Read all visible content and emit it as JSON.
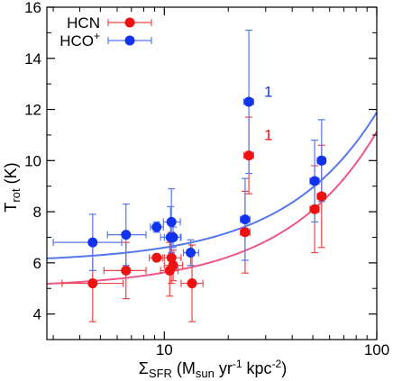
{
  "chart_data": {
    "type": "scatter",
    "title": "",
    "x_axis": {
      "scale": "log",
      "range": [
        2.8,
        100
      ],
      "tick_labels": [
        {
          "value": 10,
          "label": "10"
        },
        {
          "value": 100,
          "label": "100"
        }
      ],
      "minor_ticks": [
        3,
        4,
        5,
        6,
        7,
        8,
        9,
        20,
        30,
        40,
        50,
        60,
        70,
        80,
        90
      ],
      "label": {
        "main": "Σ",
        "main_sub": "SFR",
        "open": " (M",
        "unit_sub": "sun",
        "mid": " yr",
        "exp1": "-1",
        "mid2": " kpc",
        "exp2": "-2",
        "close": ")"
      }
    },
    "y_axis": {
      "scale": "linear",
      "range": [
        3,
        16
      ],
      "tick_labels": [
        {
          "value": 4,
          "label": "4"
        },
        {
          "value": 6,
          "label": "6"
        },
        {
          "value": 8,
          "label": "8"
        },
        {
          "value": 10,
          "label": "10"
        },
        {
          "value": 12,
          "label": "12"
        },
        {
          "value": 14,
          "label": "14"
        },
        {
          "value": 16,
          "label": "16"
        }
      ],
      "minor_ticks": [
        5,
        7,
        9,
        11,
        13,
        15
      ],
      "label": {
        "main": "T",
        "sub": "rot",
        "rest": " (K)"
      }
    },
    "grid": false,
    "legend": {
      "position": "top-left",
      "entries": [
        {
          "series": "HCN",
          "label_main": "HCN",
          "label_sup": ""
        },
        {
          "series": "HCO+",
          "label_main": "HCO",
          "label_sup": "+"
        }
      ]
    },
    "series": [
      {
        "name": "HCN",
        "color": "#ee1111",
        "errbar_color": "#ee4444",
        "points": [
          {
            "x": 4.6,
            "y": 5.2,
            "xerr": [
              3.3,
              6.4
            ],
            "yerr": [
              3.7,
              6.7
            ]
          },
          {
            "x": 6.6,
            "y": 5.7,
            "xerr": [
              5.2,
              8.2
            ],
            "yerr": [
              4.6,
              6.8
            ]
          },
          {
            "x": 9.2,
            "y": 6.2,
            "xerr": [
              8.5,
              10.0
            ],
            "yerr": [
              6.1,
              6.3
            ]
          },
          {
            "x": 10.6,
            "y": 5.7,
            "xerr": [
              9.6,
              11.6
            ],
            "yerr": [
              4.7,
              6.8
            ]
          },
          {
            "x": 10.8,
            "y": 6.2,
            "xerr": [
              9.8,
              12.0
            ],
            "yerr": [
              5.2,
              7.2
            ]
          },
          {
            "x": 11.0,
            "y": 5.9,
            "xerr": [
              10.0,
              12.2
            ],
            "yerr": [
              5.3,
              6.5
            ]
          },
          {
            "x": 13.5,
            "y": 5.2,
            "xerr": [
              12.0,
              15.2
            ],
            "yerr": [
              3.7,
              6.7
            ]
          },
          {
            "x": 24.0,
            "y": 7.2,
            "xerr": [
              22.8,
              25.3
            ],
            "yerr": [
              5.6,
              8.8
            ]
          },
          {
            "x": 25.0,
            "y": 10.2,
            "xerr": [
              23.7,
              26.3
            ],
            "yerr": [
              8.7,
              11.7
            ]
          },
          {
            "x": 51.0,
            "y": 8.1,
            "xerr": [
              48.5,
              53.5
            ],
            "yerr": [
              6.4,
              9.8
            ]
          },
          {
            "x": 55.0,
            "y": 8.6,
            "xerr": [
              52.5,
              57.5
            ],
            "yerr": [
              6.6,
              10.6
            ]
          }
        ],
        "fit": {
          "base": 5.01,
          "coef": 0.0612
        }
      },
      {
        "name": "HCO+",
        "color": "#1133ee",
        "errbar_color": "#5577ee",
        "points": [
          {
            "x": 4.6,
            "y": 6.8,
            "xerr": [
              3.0,
              6.3
            ],
            "yerr": [
              5.7,
              7.9
            ]
          },
          {
            "x": 6.6,
            "y": 7.1,
            "xerr": [
              5.4,
              8.2
            ],
            "yerr": [
              5.9,
              8.3
            ]
          },
          {
            "x": 9.2,
            "y": 7.4,
            "xerr": [
              8.6,
              9.9
            ],
            "yerr": [
              7.2,
              7.6
            ]
          },
          {
            "x": 10.7,
            "y": 7.0,
            "xerr": [
              9.6,
              11.9
            ],
            "yerr": [
              5.8,
              8.2
            ]
          },
          {
            "x": 10.8,
            "y": 7.6,
            "xerr": [
              9.9,
              11.9
            ],
            "yerr": [
              6.4,
              8.9
            ]
          },
          {
            "x": 11.0,
            "y": 7.0,
            "xerr": [
              10.0,
              12.0
            ],
            "yerr": [
              6.6,
              7.4
            ]
          },
          {
            "x": 13.3,
            "y": 6.4,
            "xerr": [
              12.3,
              14.5
            ],
            "yerr": [
              5.9,
              6.9
            ]
          },
          {
            "x": 24.0,
            "y": 7.7,
            "xerr": [
              22.8,
              25.3
            ],
            "yerr": [
              6.1,
              9.3
            ]
          },
          {
            "x": 25.0,
            "y": 12.3,
            "xerr": [
              23.7,
              26.3
            ],
            "yerr": [
              9.5,
              15.1
            ]
          },
          {
            "x": 51.0,
            "y": 9.2,
            "xerr": [
              48.5,
              53.5
            ],
            "yerr": [
              7.6,
              10.8
            ]
          },
          {
            "x": 55.0,
            "y": 10.0,
            "xerr": [
              52.5,
              57.5
            ],
            "yerr": [
              8.4,
              11.6
            ]
          }
        ],
        "fit": {
          "base": 6.01,
          "coef": 0.0588
        }
      }
    ],
    "annotations": [
      {
        "text": "1",
        "x": 29.5,
        "y": 12.5,
        "color": "#1133ee"
      },
      {
        "text": "1",
        "x": 29.5,
        "y": 10.8,
        "color": "#ee1111"
      }
    ]
  }
}
